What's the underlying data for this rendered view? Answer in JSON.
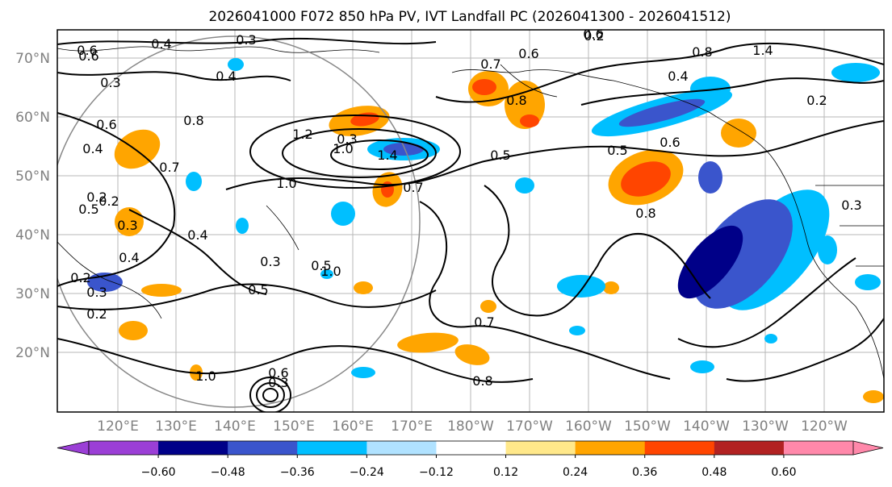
{
  "figure": {
    "title": "2026041000 F072 850 hPa PV, IVT Landfall PC (2026041300 - 2026041512)"
  },
  "chart_data": {
    "type": "heatmap",
    "title": "2026041000 F072 850 hPa PV, IVT Landfall PC (2026041300 - 2026041512)",
    "map": "North Pacific, ~110°E to ~110°W, ~10°N to 75°N",
    "lat_ticks": [
      "20°N",
      "30°N",
      "40°N",
      "50°N",
      "60°N",
      "70°N"
    ],
    "lon_ticks": [
      "120°E",
      "130°E",
      "140°E",
      "150°E",
      "160°E",
      "170°E",
      "180°W",
      "170°W",
      "160°W",
      "150°W",
      "140°W",
      "130°W",
      "120°W"
    ],
    "contour_field": "850 hPa PV",
    "contour_labels": [
      "0.6",
      "0.4",
      "0.3",
      "0.3",
      "0.4",
      "0.7",
      "0.6",
      "0.4",
      "0.2",
      "0.5",
      "0.3",
      "0.4",
      "0.2",
      "1.2",
      "1.0",
      "1.0",
      "1.4",
      "0.7",
      "0.5",
      "0.4",
      "0.3",
      "0.5",
      "1.0",
      "0.8",
      "1.4",
      "0.6",
      "0.8",
      "0.4",
      "0.2",
      "0.8",
      "0.6",
      "0.5",
      "0.7",
      "0.6",
      "1.0",
      "0.8",
      "0.3",
      "0.3",
      "0.2",
      "0.3",
      "0.8",
      "0.2",
      "0.2",
      "0.7",
      "0.3",
      "0.6",
      "0.6",
      "0.5"
    ],
    "shading_field": "IVT Landfall PC",
    "colorbar": {
      "ticks": [
        "−0.60",
        "−0.48",
        "−0.36",
        "−0.24",
        "−0.12",
        "0.12",
        "0.24",
        "0.36",
        "0.48",
        "0.60"
      ],
      "bins": [
        {
          "color": "#9b3fd6"
        },
        {
          "color": "#000088"
        },
        {
          "color": "#3a55cc"
        },
        {
          "color": "#00bfff"
        },
        {
          "color": "#b0e2ff"
        },
        {
          "color": "#ffffff"
        },
        {
          "color": "#ffe88a"
        },
        {
          "color": "#ffa500"
        },
        {
          "color": "#ff4500"
        },
        {
          "color": "#b22222"
        },
        {
          "color": "#ff88aa"
        }
      ],
      "extend": "both"
    }
  }
}
